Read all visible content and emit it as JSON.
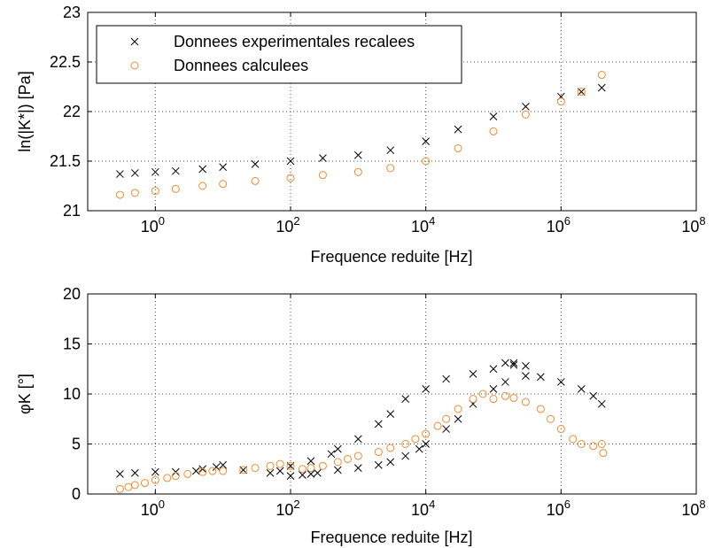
{
  "figure": {
    "colors": {
      "experimental": "#000000",
      "calculated": "#f08a2e",
      "grid": "#4d4d4d"
    }
  },
  "chart_data": [
    {
      "type": "scatter",
      "xscale": "log",
      "xlabel": "Frequence reduite [Hz]",
      "ylabel": "ln(|K*|) [Pa]",
      "xlim": [
        0.1,
        100000000
      ],
      "ylim": [
        21,
        23
      ],
      "xticks": [
        {
          "value": 1,
          "base": "10",
          "exp": "0"
        },
        {
          "value": 100,
          "base": "10",
          "exp": "2"
        },
        {
          "value": 10000,
          "base": "10",
          "exp": "4"
        },
        {
          "value": 1000000,
          "base": "10",
          "exp": "6"
        },
        {
          "value": 100000000,
          "base": "10",
          "exp": "8"
        }
      ],
      "yticks": [
        "21",
        "21.5",
        "22",
        "22.5",
        "23"
      ],
      "grid": true,
      "legend": "top-left",
      "series": [
        {
          "name": "Donnees experimentales recalees",
          "marker": "x",
          "x": [
            0.3,
            0.5,
            1,
            2,
            5,
            10,
            30,
            100,
            300,
            1000,
            3000,
            10000,
            30000,
            100000,
            300000,
            1000000,
            2000000,
            4000000
          ],
          "y": [
            21.37,
            21.38,
            21.39,
            21.4,
            21.42,
            21.44,
            21.47,
            21.5,
            21.53,
            21.56,
            21.61,
            21.7,
            21.82,
            21.95,
            22.05,
            22.15,
            22.2,
            22.24
          ]
        },
        {
          "name": "Donnees calculees",
          "marker": "o",
          "x": [
            0.3,
            0.5,
            1,
            2,
            5,
            10,
            30,
            100,
            300,
            1000,
            3000,
            10000,
            30000,
            100000,
            300000,
            1000000,
            2000000,
            4000000
          ],
          "y": [
            21.16,
            21.18,
            21.2,
            21.22,
            21.25,
            21.27,
            21.3,
            21.33,
            21.36,
            21.39,
            21.43,
            21.5,
            21.63,
            21.8,
            21.97,
            22.1,
            22.2,
            22.37
          ]
        }
      ]
    },
    {
      "type": "scatter",
      "xscale": "log",
      "xlabel": "Frequence reduite [Hz]",
      "ylabel": "φK [°]",
      "xlim": [
        0.1,
        100000000
      ],
      "ylim": [
        0,
        20
      ],
      "xticks": [
        {
          "value": 1,
          "base": "10",
          "exp": "0"
        },
        {
          "value": 100,
          "base": "10",
          "exp": "2"
        },
        {
          "value": 10000,
          "base": "10",
          "exp": "4"
        },
        {
          "value": 1000000,
          "base": "10",
          "exp": "6"
        },
        {
          "value": 100000000,
          "base": "10",
          "exp": "8"
        }
      ],
      "yticks": [
        "0",
        "5",
        "10",
        "15",
        "20"
      ],
      "grid": true,
      "series": [
        {
          "name": "Donnees experimentales recalees",
          "marker": "x",
          "x": [
            0.3,
            0.5,
            1,
            2,
            4,
            5,
            8,
            10,
            20,
            50,
            70,
            100,
            150,
            200,
            250,
            500,
            1000,
            2000,
            3000,
            5000,
            8000,
            10000,
            20000,
            30000,
            50000,
            100000,
            150000,
            300000,
            500000,
            1000000,
            2000000,
            3000000,
            4000000,
            100,
            200,
            400,
            500,
            1000,
            2000,
            3000,
            5000,
            10000,
            20000,
            50000,
            100000,
            200000,
            150000,
            200000,
            300000
          ],
          "y": [
            2.0,
            2.1,
            2.2,
            2.2,
            2.3,
            2.5,
            2.7,
            2.9,
            2.4,
            2.1,
            2.3,
            1.8,
            1.9,
            2.0,
            2.1,
            2.4,
            2.6,
            2.9,
            3.2,
            3.8,
            4.5,
            5.0,
            6.5,
            7.5,
            9.0,
            10.5,
            11.2,
            11.8,
            11.7,
            11.2,
            10.5,
            9.8,
            9.0,
            2.8,
            3.3,
            4.0,
            4.5,
            5.5,
            7.0,
            8.0,
            9.5,
            10.5,
            11.5,
            12.0,
            12.5,
            13.1,
            13.1,
            12.9,
            12.8
          ]
        },
        {
          "name": "Donnees calculees",
          "marker": "o",
          "x": [
            0.3,
            0.4,
            0.5,
            0.7,
            1,
            1.5,
            2,
            3,
            5,
            7,
            10,
            20,
            30,
            50,
            70,
            100,
            150,
            200,
            300,
            500,
            700,
            1000,
            2000,
            3000,
            5000,
            7000,
            10000,
            15000,
            20000,
            30000,
            50000,
            70000,
            100000,
            150000,
            200000,
            300000,
            500000,
            700000,
            1000000,
            1500000,
            2000000,
            3000000,
            4000000,
            4200000
          ],
          "y": [
            0.5,
            0.7,
            0.9,
            1.1,
            1.4,
            1.6,
            1.8,
            2.0,
            2.2,
            2.3,
            2.3,
            2.4,
            2.6,
            2.8,
            3.0,
            2.8,
            2.5,
            2.6,
            2.8,
            3.2,
            3.5,
            3.8,
            4.2,
            4.6,
            5.0,
            5.5,
            6.0,
            6.8,
            7.5,
            8.5,
            9.5,
            10.0,
            9.5,
            9.8,
            9.6,
            9.2,
            8.5,
            7.5,
            6.5,
            5.5,
            5.0,
            4.8,
            5.0,
            4.1
          ]
        }
      ]
    }
  ]
}
